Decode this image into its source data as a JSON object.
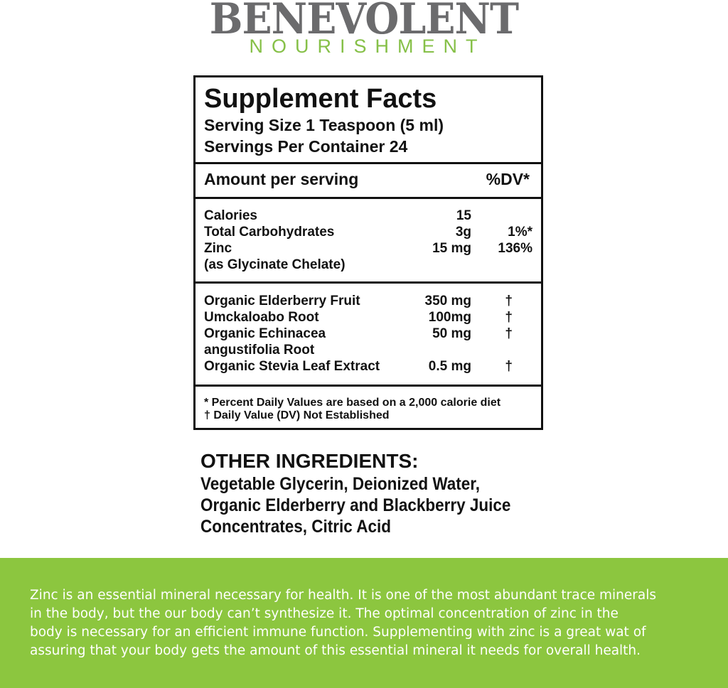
{
  "brand": {
    "name": "BENEVOLENT",
    "tagline": "NOURISHMENT",
    "colors": {
      "gray": "#6b6b6d",
      "green": "#86c048"
    }
  },
  "facts": {
    "title": "Supplement Facts",
    "serving_size": "Serving Size 1 Teaspoon (5 ml)",
    "servings_per_container": "Servings Per Container 24",
    "amount_header": "Amount per serving",
    "dv_header": "%DV*",
    "nutrients": [
      {
        "name": "Calories",
        "amount": "15",
        "dv": ""
      },
      {
        "name": "Total Carbohydrates",
        "amount": "3g",
        "dv": "1%*"
      },
      {
        "name": "Zinc",
        "amount": "15 mg",
        "dv": "136%"
      },
      {
        "name": "(as Glycinate Chelate)",
        "amount": "",
        "dv": ""
      }
    ],
    "ingredients": [
      {
        "name": "Organic Elderberry Fruit",
        "amount": "350 mg",
        "dv": "†"
      },
      {
        "name": "Umckaloabo Root",
        "amount": "100mg",
        "dv": "†"
      },
      {
        "name": "Organic Echinacea",
        "amount": "50 mg",
        "dv": "†"
      },
      {
        "name": "angustifolia Root",
        "amount": "",
        "dv": ""
      },
      {
        "name": "Organic Stevia Leaf Extract",
        "amount": "0.5 mg",
        "dv": "†"
      }
    ],
    "footnotes": [
      "* Percent Daily Values are based on a 2,000 calorie diet",
      "† Daily Value (DV) Not Established"
    ]
  },
  "other": {
    "title": "OTHER INGREDIENTS:",
    "lines": [
      "Vegetable Glycerin, Deionized Water,",
      "Organic Elderberry and Blackberry Juice",
      "Concentrates, Citric Acid"
    ]
  },
  "band": {
    "color": "#8cc63f",
    "lines": [
      "Zinc is an essential mineral necessary for health. It is one of the most abundant trace minerals",
      "in the body, but the our body can’t synthesize it. The optimal concentration of zinc in the",
      "body is necessary for an efficient immune function. Supplementing with zinc is a great wat of",
      "assuring that your body gets the amount of this essential mineral it needs for overall health."
    ]
  }
}
